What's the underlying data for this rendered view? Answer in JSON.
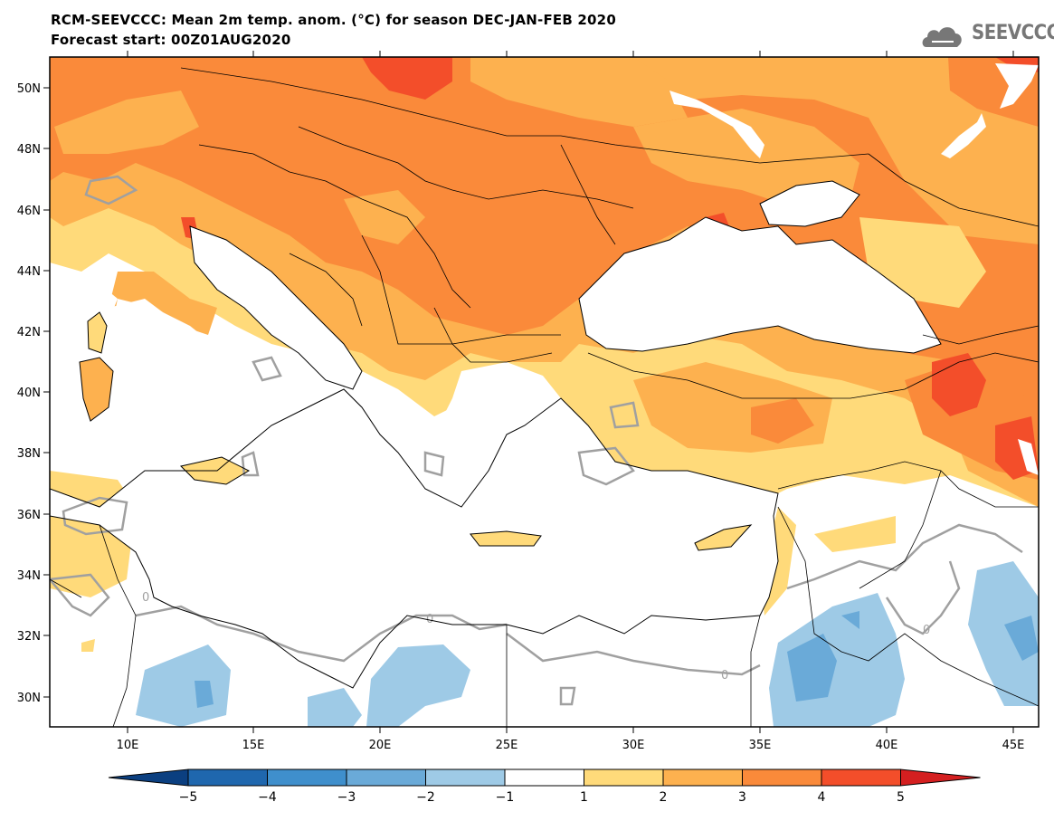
{
  "header": {
    "title_line1": "RCM-SEEVCCC: Mean 2m temp. anom. (°C) for season DEC-JAN-FEB 2020",
    "title_line2": "Forecast start: 00Z01AUG2020",
    "logo_text": "SEEVCCC"
  },
  "map": {
    "lon_ticks": [
      "10E",
      "15E",
      "20E",
      "25E",
      "30E",
      "35E",
      "40E",
      "45E"
    ],
    "lat_ticks": [
      "50N",
      "48N",
      "46N",
      "44N",
      "42N",
      "40N",
      "38N",
      "36N",
      "34N",
      "32N",
      "30N"
    ],
    "contour_label": "0"
  },
  "colorbar": {
    "tick_labels": [
      "−5",
      "−4",
      "−3",
      "−2",
      "−1",
      "1",
      "2",
      "3",
      "4",
      "5"
    ],
    "colors": [
      "#0b3f80",
      "#1f67ae",
      "#3f8fcc",
      "#6aaad8",
      "#9ecae6",
      "#ffffff",
      "#ffda7a",
      "#fdb14f",
      "#fa8a3a",
      "#f34e2a",
      "#d41f20"
    ]
  },
  "colors": {
    "anom_1_2": "#ffda7a",
    "anom_2_3": "#fdb14f",
    "anom_3_4": "#fa8a3a",
    "anom_4_5": "#f34e2a",
    "anom_gt5": "#d41f20",
    "anom_m1_m2": "#9ecae6",
    "anom_m2_m3": "#6aaad8",
    "zero_contour": "#a0a0a0"
  }
}
